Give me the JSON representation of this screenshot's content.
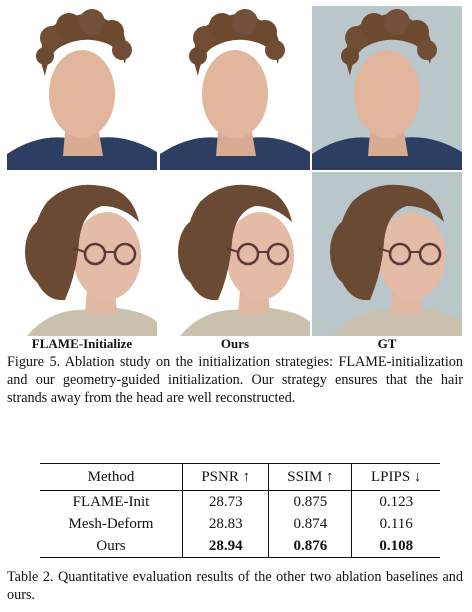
{
  "figure": {
    "columns": [
      "FLAME-Initialize",
      "Ours",
      "GT"
    ],
    "caption": "Figure 5. Ablation study on the initialization strategies: FLAME-initialization and our geometry-guided initialization. Our strategy ensures that the hair strands away from the head are well reconstructed."
  },
  "table": {
    "headers": [
      "Method",
      "PSNR ↑",
      "SSIM ↑",
      "LPIPS ↓"
    ],
    "rows": [
      [
        "FLAME-Init",
        "28.73",
        "0.875",
        "0.123"
      ],
      [
        "Mesh-Deform",
        "28.83",
        "0.874",
        "0.116"
      ],
      [
        "Ours",
        "28.94",
        "0.876",
        "0.108"
      ]
    ],
    "caption": "Table 2. Quantitative evaluation results of the other two ablation baselines and ours."
  }
}
